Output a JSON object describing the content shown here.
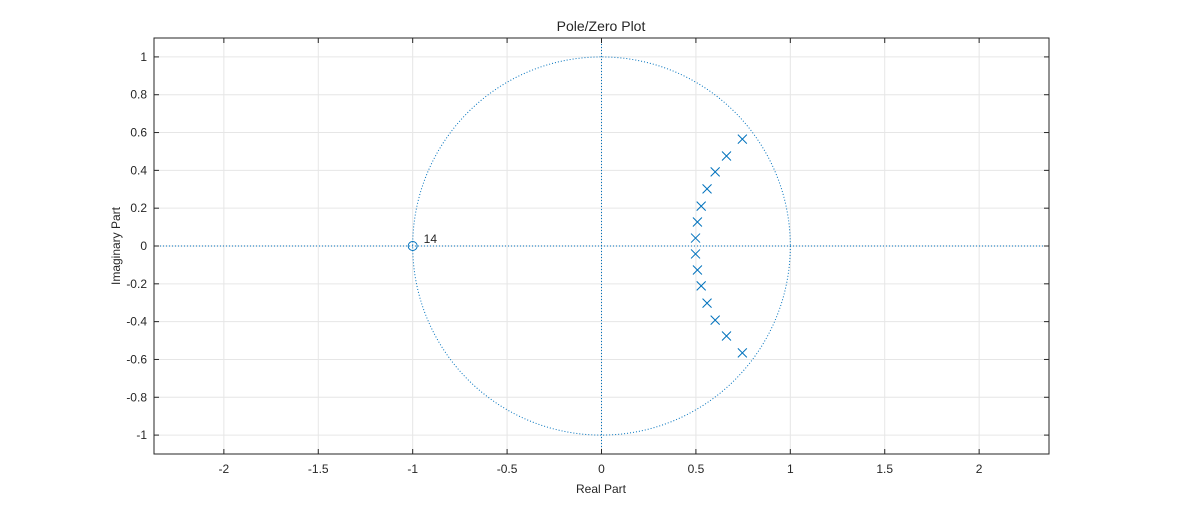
{
  "chart_data": {
    "type": "scatter",
    "title": "Pole/Zero Plot",
    "xlabel": "Real Part",
    "ylabel": "Imaginary Part",
    "xlim": [
      -2.37,
      2.37
    ],
    "ylim": [
      -1.1,
      1.1
    ],
    "xticks": [
      -2,
      -1.5,
      -1,
      -0.5,
      0,
      0.5,
      1,
      1.5,
      2
    ],
    "xtick_labels": [
      "-2",
      "-1.5",
      "-1",
      "-0.5",
      "0",
      "0.5",
      "1",
      "1.5",
      "2"
    ],
    "yticks": [
      1,
      0.8,
      0.6,
      0.4,
      0.2,
      0,
      -0.2,
      -0.4,
      -0.6,
      -0.8,
      -1
    ],
    "ytick_labels": [
      "1",
      "0.8",
      "0.6",
      "0.4",
      "0.2",
      "0",
      "-0.2",
      "-0.4",
      "-0.6",
      "-0.8",
      "-1"
    ],
    "grid": true,
    "unit_circle": true,
    "zeros": [
      {
        "re": -1.0,
        "im": 0.0,
        "multiplicity_label": "14"
      }
    ],
    "poles": [
      {
        "re": 0.746,
        "im": 0.565
      },
      {
        "re": 0.662,
        "im": 0.476
      },
      {
        "re": 0.602,
        "im": 0.392
      },
      {
        "re": 0.559,
        "im": 0.302
      },
      {
        "re": 0.528,
        "im": 0.211
      },
      {
        "re": 0.508,
        "im": 0.127
      },
      {
        "re": 0.498,
        "im": 0.042
      },
      {
        "re": 0.498,
        "im": -0.042
      },
      {
        "re": 0.508,
        "im": -0.127
      },
      {
        "re": 0.528,
        "im": -0.211
      },
      {
        "re": 0.559,
        "im": -0.302
      },
      {
        "re": 0.602,
        "im": -0.392
      },
      {
        "re": 0.662,
        "im": -0.476
      },
      {
        "re": 0.746,
        "im": -0.565
      }
    ],
    "colors": {
      "marker": "#0072BD",
      "grid": "#e6e6e6",
      "axes": "#262626",
      "text": "#262626"
    }
  }
}
